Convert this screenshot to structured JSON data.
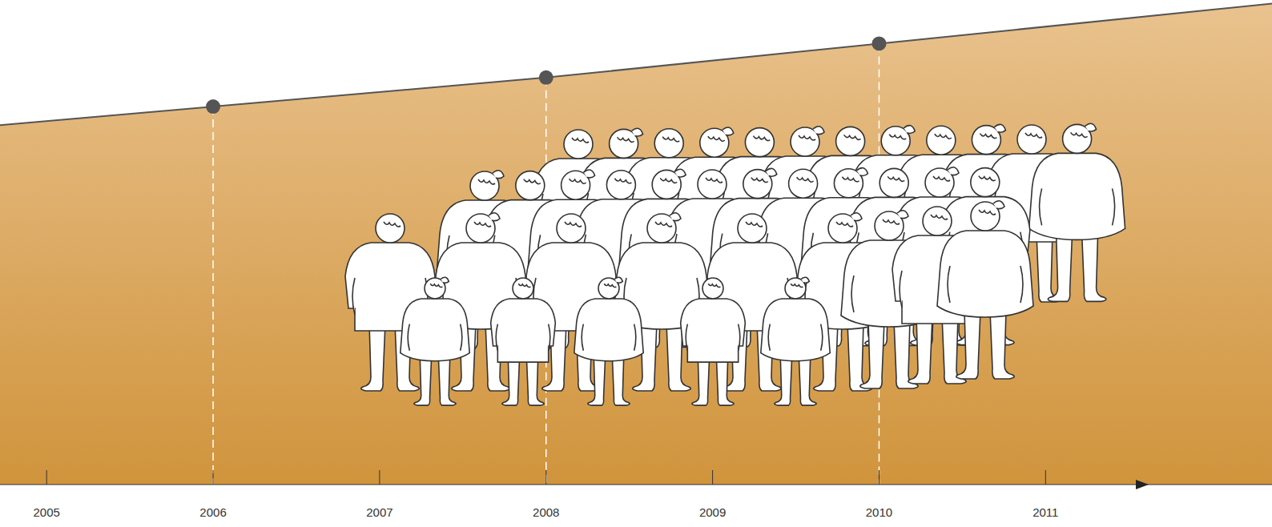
{
  "chart_data": {
    "type": "area",
    "x": [
      2006,
      2008,
      2010
    ],
    "values": [
      78,
      84,
      91
    ],
    "xlim": [
      2004.72,
      2012.36
    ],
    "xticks": [
      2005,
      2006,
      2007,
      2008,
      2009,
      2010,
      2011
    ],
    "ylim": [
      0,
      100
    ],
    "color": "#d0943c",
    "marker": "circle",
    "line_style": "solid",
    "tick_labels": "x",
    "grid": false
  }
}
